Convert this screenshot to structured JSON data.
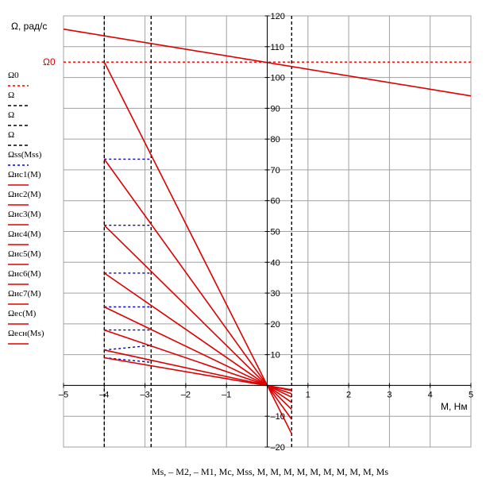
{
  "chart_data": {
    "type": "line",
    "ylabel": "Ω, рад/с",
    "xlabel": "M, Нм",
    "x_variables": "Ms, – M2, – M1, Mc, Mss, M, M, M, M, M, M, M, M, M, Ms",
    "y_annotation": "Ω0",
    "xlim": [
      -5,
      5
    ],
    "ylim": [
      -20,
      120
    ],
    "xticks": [
      -5,
      -4,
      -3,
      -2,
      -1,
      0,
      1,
      2,
      3,
      4,
      5
    ],
    "yticks": [
      -20,
      -10,
      0,
      10,
      20,
      30,
      40,
      50,
      60,
      70,
      80,
      90,
      100,
      110,
      120
    ],
    "grid": true,
    "legend_position": "left",
    "legend": [
      {
        "label": "Ω0",
        "color": "#dd0000",
        "style": "dotted"
      },
      {
        "label": "Ω",
        "color": "#000000",
        "style": "dashed"
      },
      {
        "label": "Ω",
        "color": "#000000",
        "style": "dashed"
      },
      {
        "label": "Ω",
        "color": "#000000",
        "style": "dashed"
      },
      {
        "label": "Ωss(Mss)",
        "color": "#0000cc",
        "style": "dotted"
      },
      {
        "label": "Ωис1(M)",
        "color": "#dd0000",
        "style": "solid"
      },
      {
        "label": "Ωис2(M)",
        "color": "#dd0000",
        "style": "solid"
      },
      {
        "label": "Ωис3(M)",
        "color": "#dd0000",
        "style": "solid"
      },
      {
        "label": "Ωис4(M)",
        "color": "#dd0000",
        "style": "solid"
      },
      {
        "label": "Ωис5(M)",
        "color": "#dd0000",
        "style": "solid"
      },
      {
        "label": "Ωис6(M)",
        "color": "#dd0000",
        "style": "solid"
      },
      {
        "label": "Ωис7(M)",
        "color": "#dd0000",
        "style": "solid"
      },
      {
        "label": "Ωес(M)",
        "color": "#dd0000",
        "style": "solid"
      },
      {
        "label": "Ωесн(Ms)",
        "color": "#dd0000",
        "style": "solid"
      }
    ],
    "series": [
      {
        "color": "#dd0000",
        "style": "dotted",
        "x": [
          -5,
          5
        ],
        "y": [
          105,
          105
        ]
      },
      {
        "color": "#000000",
        "style": "dashed",
        "x": [
          -4,
          -4
        ],
        "y": [
          -20,
          120
        ]
      },
      {
        "color": "#000000",
        "style": "dashed",
        "x": [
          -2.85,
          -2.85
        ],
        "y": [
          -20,
          120
        ]
      },
      {
        "color": "#000000",
        "style": "dashed",
        "x": [
          0.6,
          0.6
        ],
        "y": [
          -20,
          120
        ]
      },
      {
        "color": "#dd0000",
        "style": "solid",
        "x": [
          -5,
          5
        ],
        "y": [
          115.7,
          94
        ]
      },
      {
        "color": "#0000cc",
        "style": "dotted",
        "x": [
          -4,
          -2.85
        ],
        "y": [
          73.5,
          73.5
        ]
      },
      {
        "color": "#0000cc",
        "style": "dotted",
        "x": [
          -4,
          -2.85
        ],
        "y": [
          52,
          52
        ]
      },
      {
        "color": "#0000cc",
        "style": "dotted",
        "x": [
          -4,
          -2.85
        ],
        "y": [
          36.5,
          36.5
        ]
      },
      {
        "color": "#0000cc",
        "style": "dotted",
        "x": [
          -4,
          -2.85
        ],
        "y": [
          25.5,
          25.5
        ]
      },
      {
        "color": "#0000cc",
        "style": "dotted",
        "x": [
          -4,
          -2.85
        ],
        "y": [
          18,
          18
        ]
      },
      {
        "color": "#0000cc",
        "style": "dotted",
        "x": [
          -4,
          -2.85
        ],
        "y": [
          11.5,
          13
        ]
      },
      {
        "color": "#0000cc",
        "style": "dotted",
        "x": [
          -4,
          -2.85
        ],
        "y": [
          9,
          7.5
        ]
      },
      {
        "color": "#dd0000",
        "style": "solid",
        "x": [
          -4,
          0.6
        ],
        "y": [
          105,
          -15.7
        ]
      },
      {
        "color": "#dd0000",
        "style": "solid",
        "x": [
          -4,
          0.6
        ],
        "y": [
          73.5,
          -11
        ]
      },
      {
        "color": "#dd0000",
        "style": "solid",
        "x": [
          -4,
          0.6
        ],
        "y": [
          52,
          -7.8
        ]
      },
      {
        "color": "#dd0000",
        "style": "solid",
        "x": [
          -4,
          0.6
        ],
        "y": [
          36.5,
          -5.5
        ]
      },
      {
        "color": "#dd0000",
        "style": "solid",
        "x": [
          -4,
          0.6
        ],
        "y": [
          25.5,
          -3.8
        ]
      },
      {
        "color": "#dd0000",
        "style": "solid",
        "x": [
          -4,
          0.6
        ],
        "y": [
          18,
          -2.7
        ]
      },
      {
        "color": "#dd0000",
        "style": "solid",
        "x": [
          -4,
          0.6
        ],
        "y": [
          11.5,
          -1.7
        ]
      },
      {
        "color": "#dd0000",
        "style": "solid",
        "x": [
          -4,
          0.6
        ],
        "y": [
          9,
          -1.4
        ]
      }
    ]
  }
}
